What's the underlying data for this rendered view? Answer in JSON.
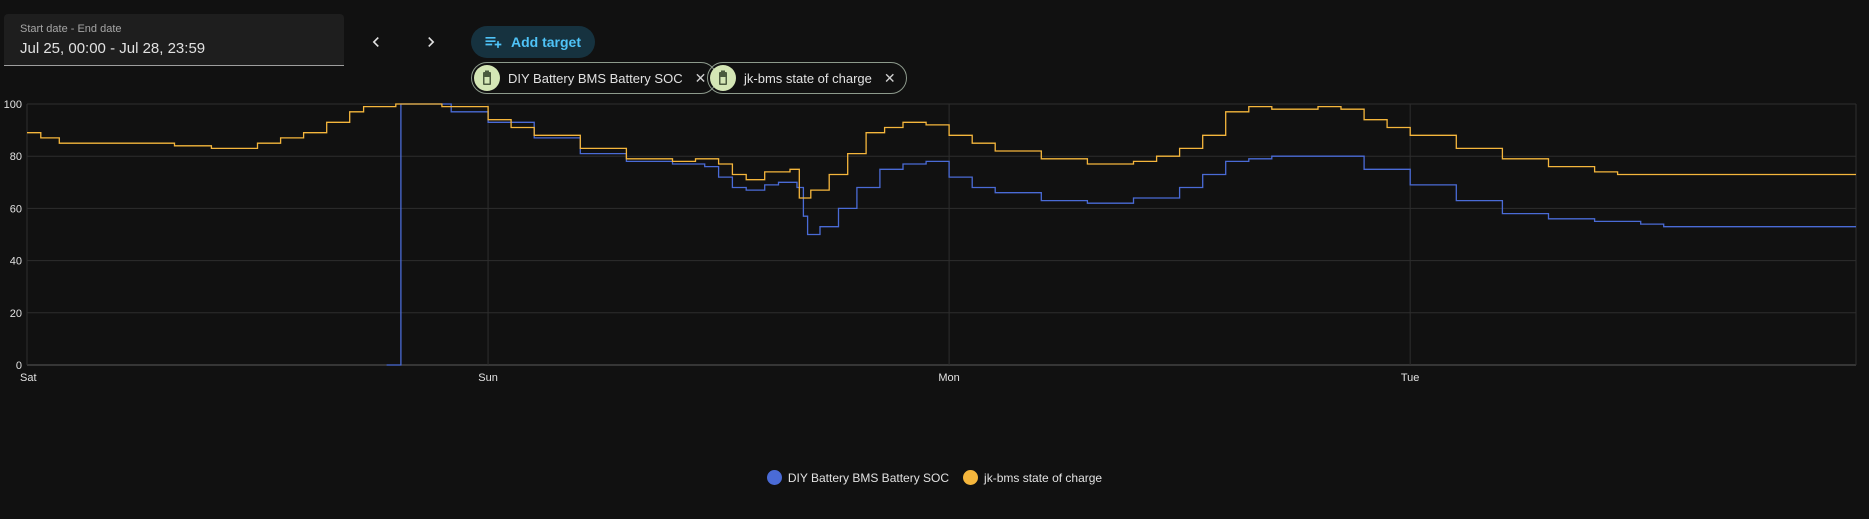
{
  "date_picker": {
    "label": "Start date - End date",
    "value": "Jul 25, 00:00 - Jul 28, 23:59"
  },
  "nav": {
    "prev_icon": "chevron-left-icon",
    "next_icon": "chevron-right-icon"
  },
  "add_target": {
    "label": "Add target",
    "icon": "playlist-plus-icon"
  },
  "chips": [
    {
      "label": "DIY Battery BMS Battery SOC",
      "icon": "battery-icon"
    },
    {
      "label": "jk-bms state of charge",
      "icon": "battery-icon"
    }
  ],
  "colors": {
    "series1": "#4a6bd6",
    "series2": "#f5b63c",
    "accent": "#4fc3f7",
    "chip_icon_bg": "#d4e6b5"
  },
  "chart_data": {
    "type": "line",
    "y_unit": "%",
    "ylim": [
      0,
      100
    ],
    "y_ticks": [
      "0",
      "20",
      "40",
      "60",
      "80",
      "100"
    ],
    "x_range_days": [
      0,
      3.967
    ],
    "x_ticks": [
      {
        "label": "Sat",
        "day": 0
      },
      {
        "label": "Sun",
        "day": 1
      },
      {
        "label": "Mon",
        "day": 2
      },
      {
        "label": "Tue",
        "day": 3
      }
    ],
    "grid": true,
    "legend_position": "bottom",
    "series": [
      {
        "name": "DIY Battery BMS Battery SOC",
        "points": [
          [
            0.78,
            0
          ],
          [
            0.81,
            0
          ],
          [
            0.811,
            100
          ],
          [
            0.87,
            100
          ],
          [
            0.92,
            97
          ],
          [
            1.0,
            93
          ],
          [
            1.1,
            87
          ],
          [
            1.2,
            81
          ],
          [
            1.3,
            78
          ],
          [
            1.4,
            77
          ],
          [
            1.47,
            76
          ],
          [
            1.5,
            72
          ],
          [
            1.53,
            68
          ],
          [
            1.56,
            67
          ],
          [
            1.6,
            69
          ],
          [
            1.63,
            70
          ],
          [
            1.65,
            70
          ],
          [
            1.67,
            68
          ],
          [
            1.684,
            57
          ],
          [
            1.693,
            50
          ],
          [
            1.72,
            53
          ],
          [
            1.76,
            60
          ],
          [
            1.8,
            68
          ],
          [
            1.85,
            75
          ],
          [
            1.9,
            77
          ],
          [
            1.95,
            78
          ],
          [
            2.0,
            72
          ],
          [
            2.05,
            68
          ],
          [
            2.1,
            66
          ],
          [
            2.2,
            63
          ],
          [
            2.3,
            62
          ],
          [
            2.4,
            64
          ],
          [
            2.5,
            68
          ],
          [
            2.55,
            73
          ],
          [
            2.6,
            78
          ],
          [
            2.65,
            79
          ],
          [
            2.7,
            80
          ],
          [
            2.8,
            80
          ],
          [
            2.9,
            75
          ],
          [
            3.0,
            69
          ],
          [
            3.1,
            63
          ],
          [
            3.2,
            58
          ],
          [
            3.3,
            56
          ],
          [
            3.4,
            55
          ],
          [
            3.5,
            54
          ],
          [
            3.55,
            53
          ],
          [
            3.967,
            53
          ]
        ]
      },
      {
        "name": "jk-bms state of charge",
        "points": [
          [
            0.0,
            89
          ],
          [
            0.03,
            87
          ],
          [
            0.07,
            85
          ],
          [
            0.2,
            85
          ],
          [
            0.3,
            85
          ],
          [
            0.32,
            84
          ],
          [
            0.38,
            84
          ],
          [
            0.4,
            83
          ],
          [
            0.45,
            83
          ],
          [
            0.5,
            85
          ],
          [
            0.55,
            87
          ],
          [
            0.6,
            89
          ],
          [
            0.65,
            93
          ],
          [
            0.7,
            97
          ],
          [
            0.73,
            99
          ],
          [
            0.8,
            100
          ],
          [
            0.85,
            100
          ],
          [
            0.9,
            99
          ],
          [
            1.0,
            94
          ],
          [
            1.05,
            91
          ],
          [
            1.1,
            88
          ],
          [
            1.2,
            83
          ],
          [
            1.3,
            79
          ],
          [
            1.4,
            78
          ],
          [
            1.45,
            79
          ],
          [
            1.5,
            77
          ],
          [
            1.53,
            73
          ],
          [
            1.56,
            71
          ],
          [
            1.6,
            74
          ],
          [
            1.63,
            74
          ],
          [
            1.655,
            75
          ],
          [
            1.675,
            64
          ],
          [
            1.7,
            67
          ],
          [
            1.74,
            73
          ],
          [
            1.78,
            81
          ],
          [
            1.82,
            89
          ],
          [
            1.86,
            91
          ],
          [
            1.9,
            93
          ],
          [
            1.95,
            92
          ],
          [
            2.0,
            88
          ],
          [
            2.05,
            85
          ],
          [
            2.1,
            82
          ],
          [
            2.2,
            79
          ],
          [
            2.3,
            77
          ],
          [
            2.4,
            78
          ],
          [
            2.45,
            80
          ],
          [
            2.5,
            83
          ],
          [
            2.55,
            88
          ],
          [
            2.6,
            97
          ],
          [
            2.65,
            99
          ],
          [
            2.7,
            98
          ],
          [
            2.8,
            99
          ],
          [
            2.85,
            98
          ],
          [
            2.9,
            94
          ],
          [
            2.95,
            91
          ],
          [
            3.0,
            88
          ],
          [
            3.1,
            83
          ],
          [
            3.2,
            79
          ],
          [
            3.3,
            76
          ],
          [
            3.4,
            74
          ],
          [
            3.45,
            73
          ],
          [
            3.967,
            73
          ]
        ]
      }
    ]
  }
}
